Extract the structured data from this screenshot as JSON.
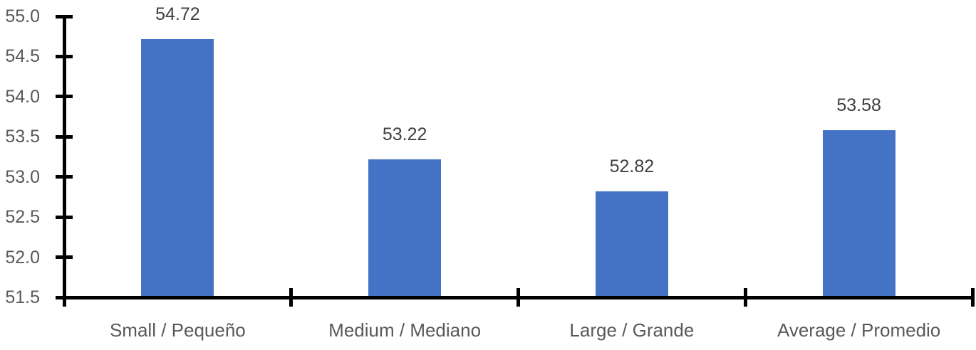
{
  "chart_data": {
    "type": "bar",
    "categories": [
      "Small / Pequeño",
      "Medium / Mediano",
      "Large / Grande",
      "Average / Promedio"
    ],
    "values": [
      54.72,
      53.22,
      52.82,
      53.58
    ],
    "data_labels": [
      "54.72",
      "53.22",
      "52.82",
      "53.58"
    ],
    "ylim": [
      51.5,
      55.0
    ],
    "ytick_step": 0.5,
    "ytick_labels": [
      "55.0",
      "54.5",
      "54.0",
      "53.5",
      "53.0",
      "52.5",
      "52.0",
      "51.5"
    ],
    "grid": false,
    "legend": false,
    "tick_style": "cross",
    "colors": {
      "bar": "#4472C4",
      "axis": "#000000",
      "axis_tick_label": "#595959",
      "category_label": "#595959",
      "data_label": "#404040",
      "background": "#FFFFFF"
    }
  }
}
